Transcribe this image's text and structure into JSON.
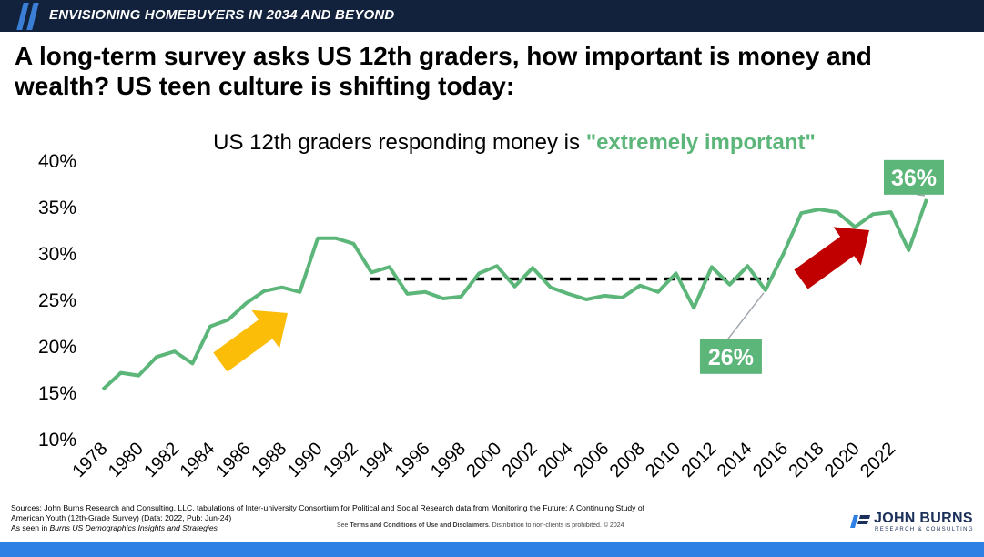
{
  "header": {
    "section_title": "ENVISIONING HOMEBUYERS IN 2034 AND BEYOND"
  },
  "headline": "A long-term survey asks US 12th graders, how important is money and wealth? US teen culture is shifting today:",
  "chart_title": {
    "prefix": "US 12th graders responding money is ",
    "highlight": "\"extremely important\""
  },
  "colors": {
    "line": "#5db679",
    "header_bg": "#12223d",
    "accent_blue": "#2f80e4",
    "arrow_up_1": "#fbbd08",
    "arrow_up_2": "#c00000",
    "dashed_line": "#000000"
  },
  "chart_data": {
    "type": "line",
    "x": [
      1978,
      1979,
      1980,
      1981,
      1982,
      1983,
      1984,
      1985,
      1986,
      1987,
      1988,
      1989,
      1990,
      1991,
      1992,
      1993,
      1994,
      1995,
      1996,
      1997,
      1998,
      1999,
      2000,
      2001,
      2002,
      2003,
      2004,
      2005,
      2006,
      2007,
      2008,
      2009,
      2010,
      2011,
      2012,
      2013,
      2014,
      2015,
      2016,
      2017,
      2018,
      2019,
      2020,
      2021,
      2022,
      2023,
      2024
    ],
    "y": [
      15.3,
      17.1,
      16.8,
      18.8,
      19.4,
      18.1,
      22.1,
      22.8,
      24.6,
      25.9,
      26.3,
      25.8,
      31.6,
      31.6,
      31.0,
      27.9,
      28.5,
      25.6,
      25.8,
      25.1,
      25.3,
      27.8,
      28.6,
      26.4,
      28.4,
      26.3,
      25.6,
      25.0,
      25.4,
      25.2,
      26.5,
      25.8,
      27.8,
      24.1,
      28.5,
      26.6,
      28.6,
      26.0,
      29.9,
      34.3,
      34.7,
      34.4,
      32.8,
      34.2,
      34.4,
      30.3,
      35.8
    ],
    "x_tick_labels": [
      "1978",
      "1980",
      "1982",
      "1984",
      "1986",
      "1988",
      "1990",
      "1992",
      "1994",
      "1996",
      "1998",
      "2000",
      "2002",
      "2004",
      "2006",
      "2008",
      "2010",
      "2012",
      "2014",
      "2016",
      "2018",
      "2020",
      "2022"
    ],
    "y_tick_labels": [
      "10%",
      "15%",
      "20%",
      "25%",
      "30%",
      "35%",
      "40%"
    ],
    "ylim": [
      10,
      40
    ],
    "xlim": [
      1977.5,
      2024.5
    ],
    "grid": false,
    "legend": "none",
    "reference_line": {
      "y": 27.2,
      "x_start": 1993,
      "x_end": 2015,
      "style": "dashed"
    },
    "callouts": [
      {
        "label": "26%",
        "x": 2015
      },
      {
        "label": "36%",
        "x": 2024
      }
    ]
  },
  "footer": {
    "sources_line1": "Sources: John Burns Research and Consulting, LLC, tabulations of Inter-university Consortium for Political and Social Research data from Monitoring the Future: A Continuing Study of",
    "sources_line2": "American Youth (12th-Grade Survey) (Data: 2022, Pub: Jun-24)",
    "seen_in_prefix": "As seen in ",
    "seen_in_title": "Burns US Demographics Insights and Strategies",
    "terms_prefix": "See ",
    "terms_link": "Terms and Conditions of Use and Disclaimers",
    "terms_suffix": ". Distribution to non-clients is prohibited. © 2024"
  },
  "logo": {
    "name": "JOHN BURNS",
    "subtitle": "RESEARCH & CONSULTING"
  }
}
